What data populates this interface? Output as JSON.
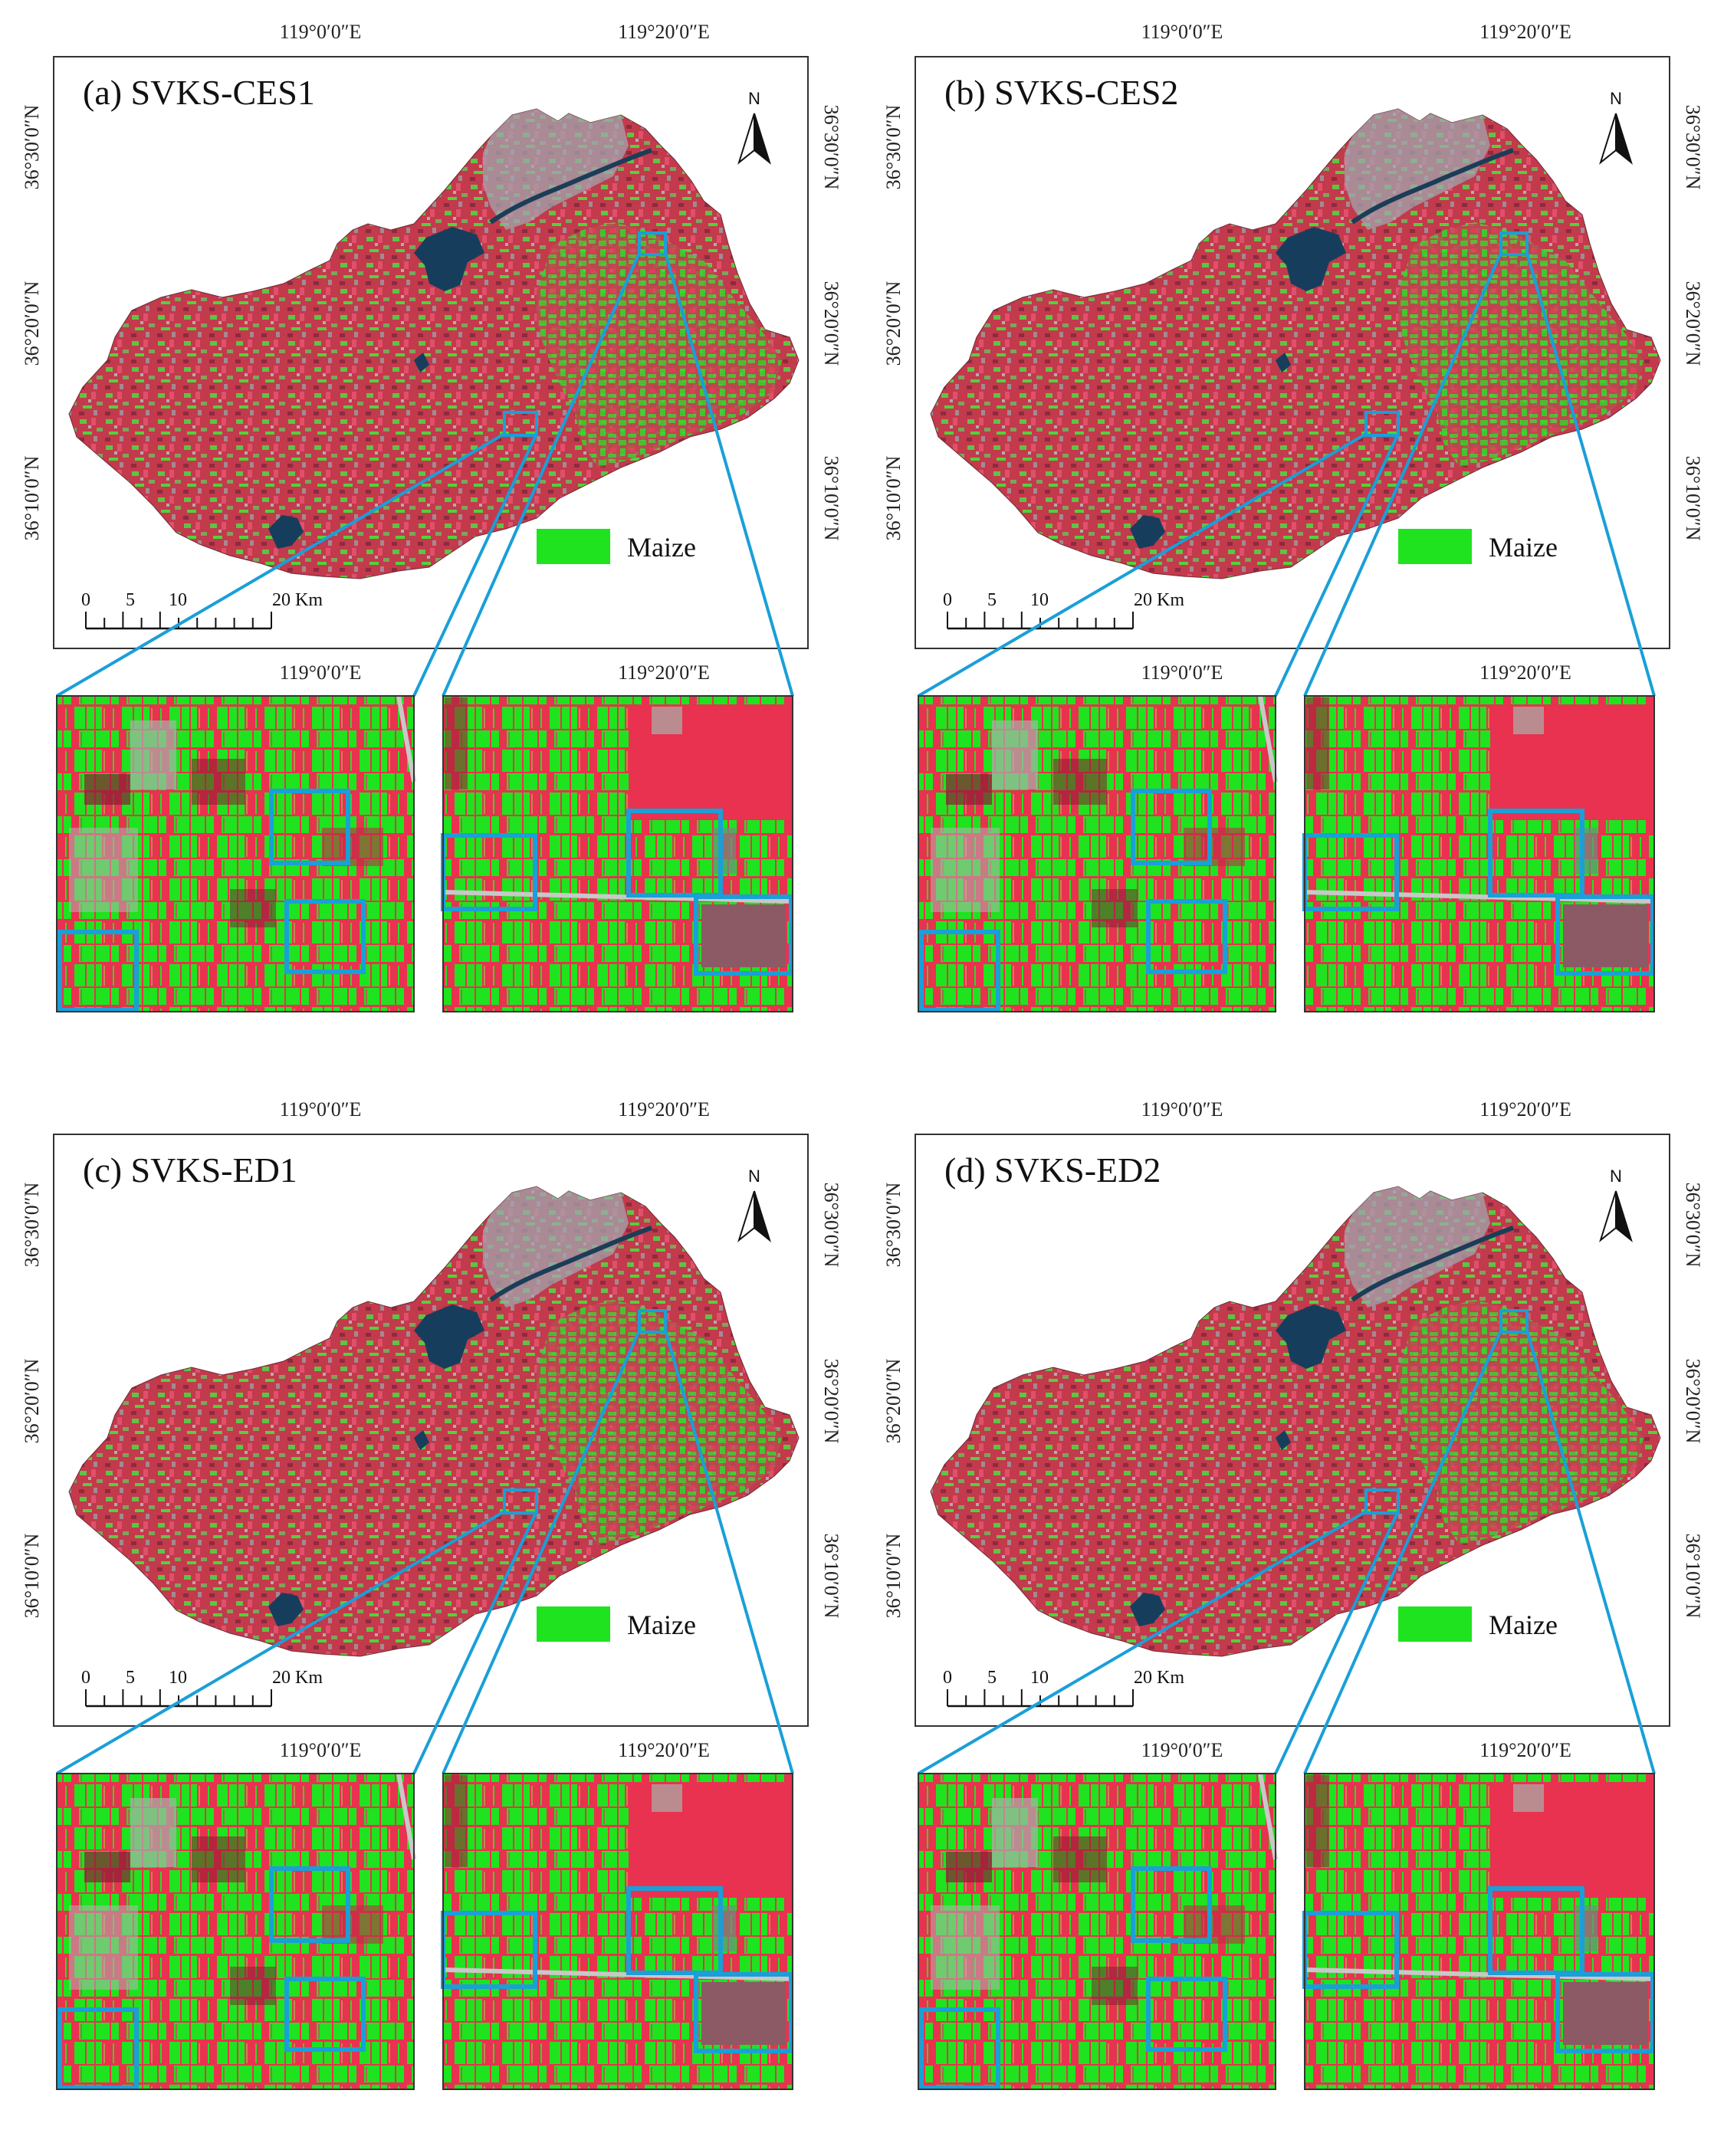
{
  "coords": {
    "lon_left": "119°0′0″E",
    "lon_right": "119°20′0″E",
    "lat_30": "36°30′0″N",
    "lat_20": "36°20′0″N",
    "lat_10": "36°10′0″N"
  },
  "legend": {
    "label": "Maize",
    "color": "#1fe31f"
  },
  "scale_bar": {
    "ticks": [
      "0",
      "5",
      "10",
      "20 Km"
    ]
  },
  "north_arrow": {
    "label": "N"
  },
  "colors": {
    "cropland_red": "#c23a4c",
    "field_red": "#e8324f",
    "maize_green": "#1fe31f",
    "water": "#163e5c",
    "urban": "#9aa3a8",
    "callout_blue": "#1a9fd8"
  },
  "panels": [
    {
      "id": "a",
      "title": "(a) SVKS-CES1"
    },
    {
      "id": "b",
      "title": "(b) SVKS-CES2"
    },
    {
      "id": "c",
      "title": "(c) SVKS-ED1"
    },
    {
      "id": "d",
      "title": "(d) SVKS-ED2"
    }
  ]
}
